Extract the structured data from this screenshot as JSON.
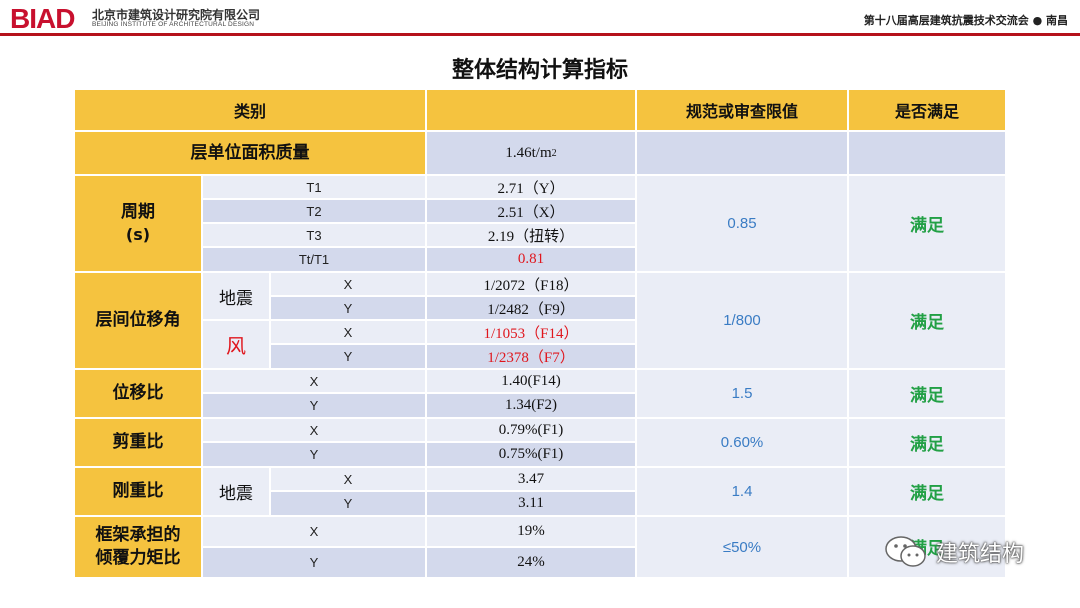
{
  "header": {
    "logo": "BIAD",
    "org_cn": "北京市建筑设计研究院有限公司",
    "org_en": "BEIJING INSTITUTE OF ARCHITECTURAL DESIGN",
    "conference": "第十八届高层建筑抗震技术交流会 ● 南昌"
  },
  "title": "整体结构计算指标",
  "colors": {
    "gold": "#f5c33f",
    "blue": "#d3d9ec",
    "light": "#eaedf6",
    "red": "#e0161d",
    "green": "#22a045",
    "limit_blue": "#3a7cc4",
    "brand_red": "#b5121b"
  },
  "table": {
    "headers": {
      "category": "类别",
      "limit": "规范或审查限值",
      "satisfied": "是否满足"
    },
    "mass": {
      "label": "层单位面积质量",
      "value": "1.46t/m",
      "value_sup": "2"
    },
    "period": {
      "label": "周期",
      "unit": "(s)",
      "rows": [
        {
          "sub": "T1",
          "value": "2.71（Y）"
        },
        {
          "sub": "T2",
          "value": "2.51（X）"
        },
        {
          "sub": "T3",
          "value": "2.19（扭转）"
        },
        {
          "sub": "Tt/T1",
          "value": "0.81"
        }
      ],
      "limit": "0.85",
      "ok": "满足"
    },
    "drift": {
      "label": "层间位移角",
      "eq_label": "地震",
      "wind_label": "风",
      "rows": [
        {
          "dir": "X",
          "value": "1/2072（F18）"
        },
        {
          "dir": "Y",
          "value": "1/2482（F9）"
        },
        {
          "dir": "X",
          "value": "1/1053（F14）"
        },
        {
          "dir": "Y",
          "value": "1/2378（F7）"
        }
      ],
      "limit": "1/800",
      "ok": "满足"
    },
    "disp_ratio": {
      "label": "位移比",
      "rows": [
        {
          "dir": "X",
          "value": "1.40(F14)"
        },
        {
          "dir": "Y",
          "value": "1.34(F2)"
        }
      ],
      "limit": "1.5",
      "ok": "满足"
    },
    "shear_ratio": {
      "label": "剪重比",
      "rows": [
        {
          "dir": "X",
          "value": "0.79%(F1)"
        },
        {
          "dir": "Y",
          "value": "0.75%(F1)"
        }
      ],
      "limit": "0.60%",
      "ok": "满足"
    },
    "stiff_ratio": {
      "label": "刚重比",
      "eq_label": "地震",
      "rows": [
        {
          "dir": "X",
          "value": "3.47"
        },
        {
          "dir": "Y",
          "value": "3.11"
        }
      ],
      "limit": "1.4",
      "ok": "满足"
    },
    "frame_moment": {
      "label_1": "框架承担的",
      "label_2": "倾覆力矩比",
      "rows": [
        {
          "dir": "X",
          "value": "19%"
        },
        {
          "dir": "Y",
          "value": "24%"
        }
      ],
      "limit": "≤50%",
      "ok": "满足"
    }
  },
  "watermark": {
    "text": "建筑结构",
    "icon": "wechat-icon"
  }
}
